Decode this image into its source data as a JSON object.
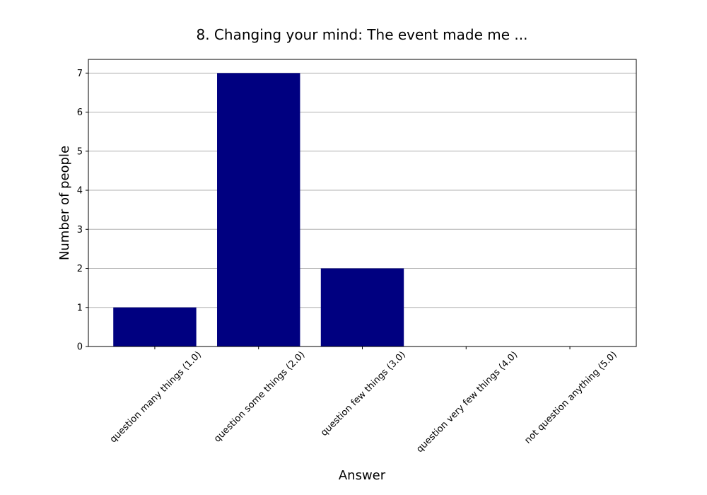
{
  "chart_data": {
    "type": "bar",
    "title": "8. Changing your mind: The event made me ...",
    "xlabel": "Answer",
    "ylabel": "Number of people",
    "categories": [
      "question many things (1.0)",
      "question some things (2.0)",
      "question few things (3.0)",
      "question very few things (4.0)",
      "not question anything (5.0)"
    ],
    "values": [
      1,
      7,
      2,
      0,
      0
    ],
    "color": "#000080",
    "ylim": [
      0,
      7.35
    ],
    "yticks": [
      0,
      1,
      2,
      3,
      4,
      5,
      6,
      7
    ],
    "grid": true
  }
}
